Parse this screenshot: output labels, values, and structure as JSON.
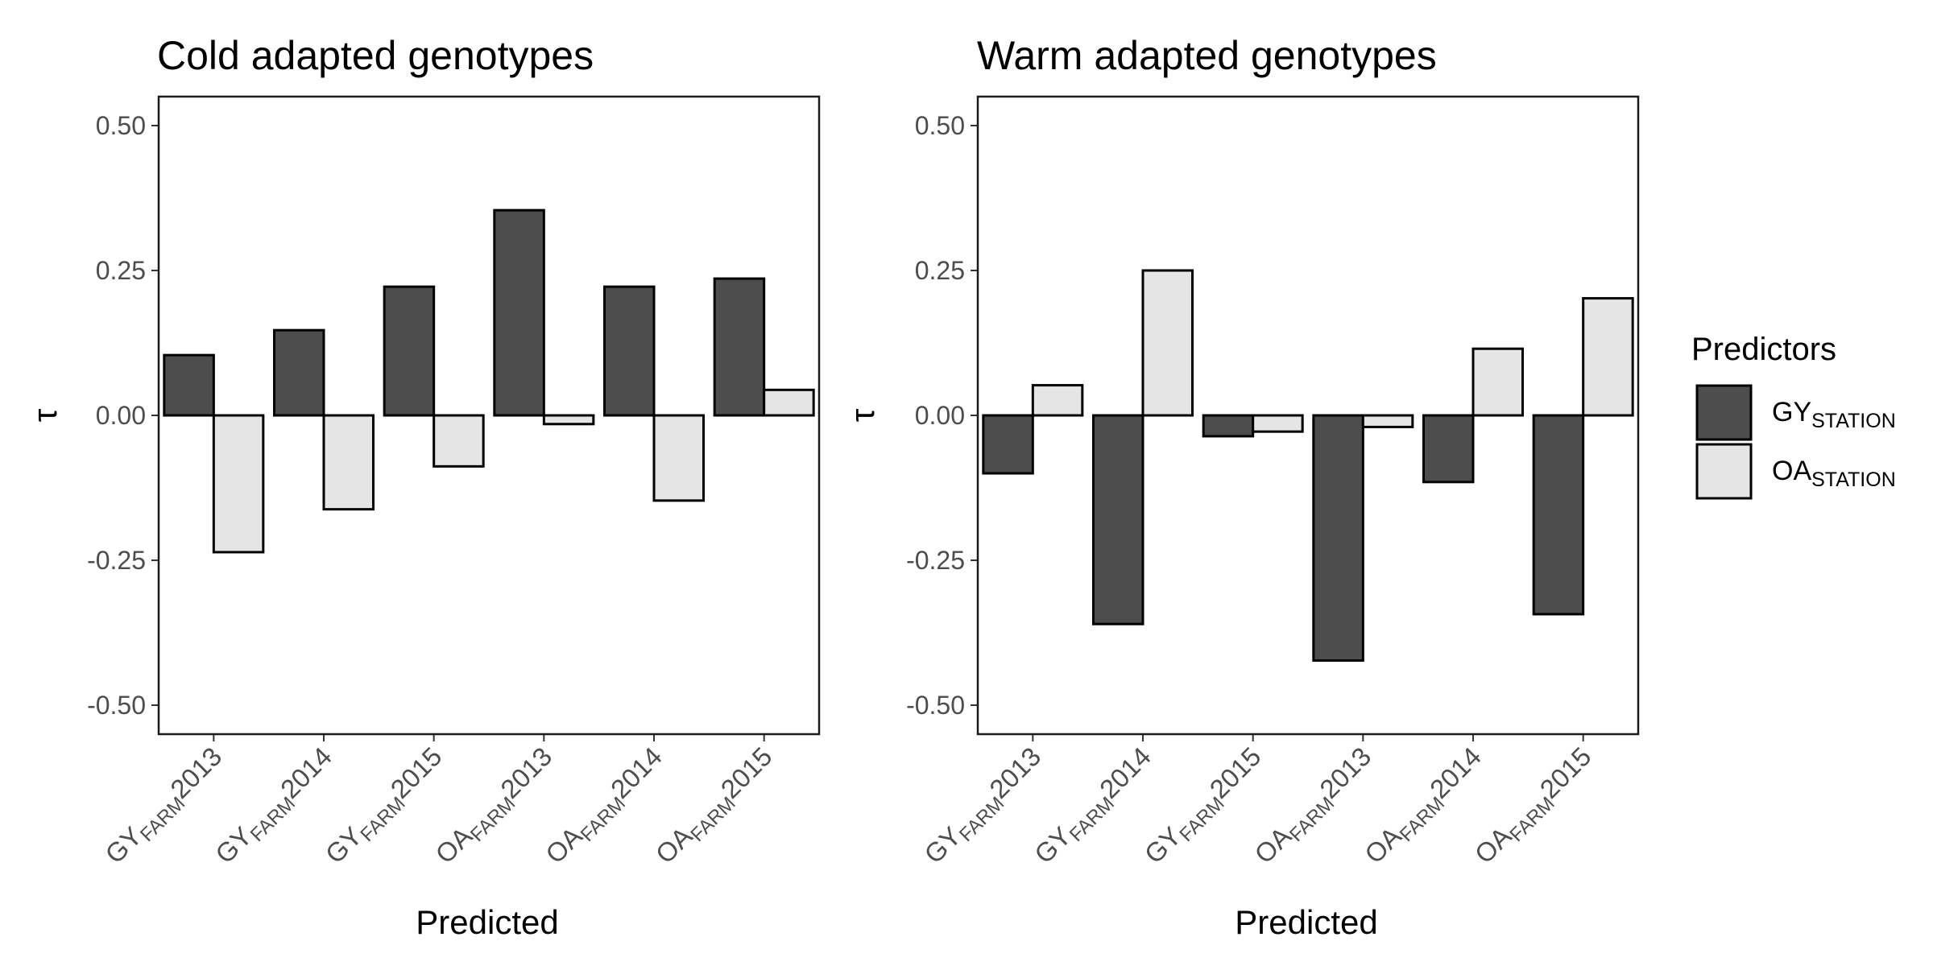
{
  "chart_data": [
    {
      "type": "bar",
      "title": "Cold adapted genotypes",
      "xlabel": "Predicted",
      "ylabel": "τ",
      "ylim": [
        -0.55,
        0.55
      ],
      "yticks": [
        "-0.50",
        "-0.25",
        "0.00",
        "0.25",
        "0.50"
      ],
      "categories": [
        {
          "main": "GY",
          "sub": "FARM",
          "year": "2013"
        },
        {
          "main": "GY",
          "sub": "FARM",
          "year": "2014"
        },
        {
          "main": "GY",
          "sub": "FARM",
          "year": "2015"
        },
        {
          "main": "OA",
          "sub": "FARM",
          "year": "2013"
        },
        {
          "main": "OA",
          "sub": "FARM",
          "year": "2014"
        },
        {
          "main": "OA",
          "sub": "FARM",
          "year": "2015"
        }
      ],
      "series": [
        {
          "name": "GY_STATION",
          "color": "#4d4d4d",
          "values": [
            0.104,
            0.147,
            0.222,
            0.354,
            0.222,
            0.236
          ]
        },
        {
          "name": "OA_STATION",
          "color": "#e5e5e5",
          "values": [
            -0.236,
            -0.162,
            -0.088,
            -0.015,
            -0.147,
            0.044
          ]
        }
      ],
      "grid": false
    },
    {
      "type": "bar",
      "title": "Warm adapted genotypes",
      "xlabel": "Predicted",
      "ylabel": "τ",
      "ylim": [
        -0.55,
        0.55
      ],
      "yticks": [
        "-0.50",
        "-0.25",
        "0.00",
        "0.25",
        "0.50"
      ],
      "categories": [
        {
          "main": "GY",
          "sub": "FARM",
          "year": "2013"
        },
        {
          "main": "GY",
          "sub": "FARM",
          "year": "2014"
        },
        {
          "main": "GY",
          "sub": "FARM",
          "year": "2015"
        },
        {
          "main": "OA",
          "sub": "FARM",
          "year": "2013"
        },
        {
          "main": "OA",
          "sub": "FARM",
          "year": "2014"
        },
        {
          "main": "OA",
          "sub": "FARM",
          "year": "2015"
        }
      ],
      "series": [
        {
          "name": "GY_STATION",
          "color": "#4d4d4d",
          "values": [
            -0.1,
            -0.36,
            -0.036,
            -0.423,
            -0.115,
            -0.343
          ]
        },
        {
          "name": "OA_STATION",
          "color": "#e5e5e5",
          "values": [
            0.052,
            0.25,
            -0.028,
            -0.02,
            0.115,
            0.202
          ]
        }
      ],
      "grid": false
    }
  ],
  "legend": {
    "title": "Predictors",
    "placement": "right",
    "items": [
      {
        "main": "GY",
        "sub": "STATION",
        "color": "#4d4d4d"
      },
      {
        "main": "OA",
        "sub": "STATION",
        "color": "#e5e5e5"
      }
    ]
  }
}
